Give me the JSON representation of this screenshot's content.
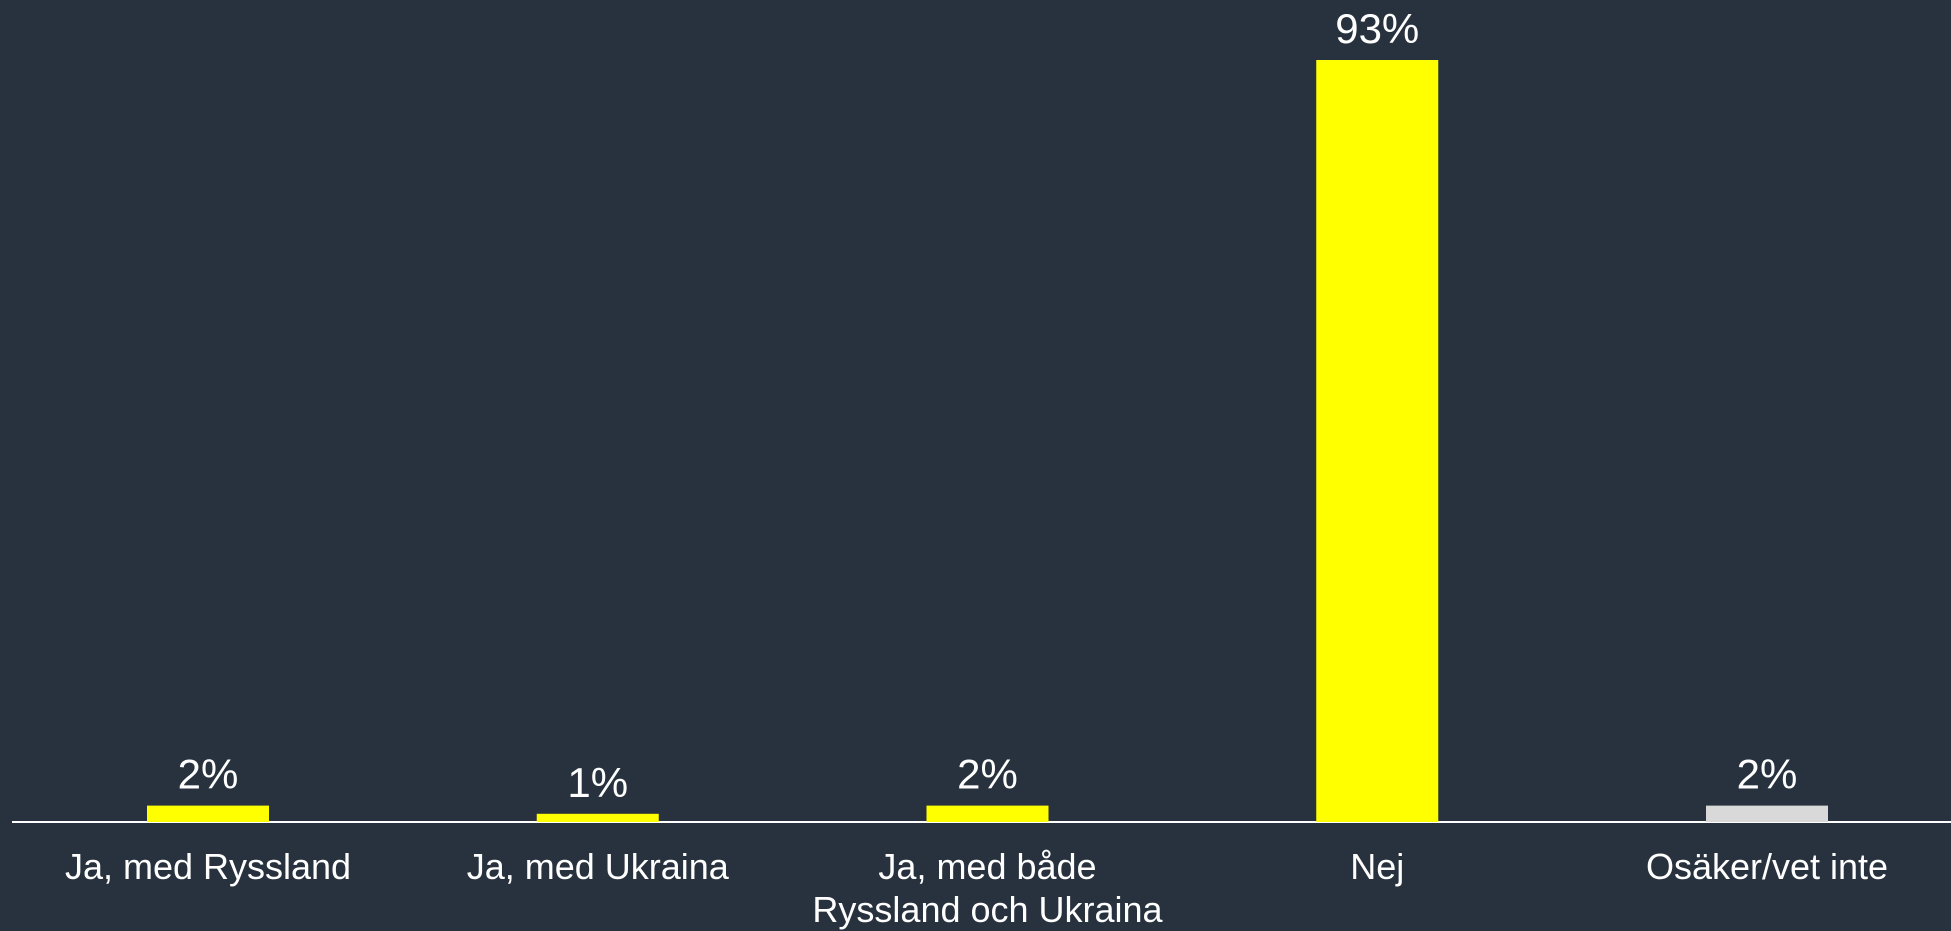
{
  "chart_data": {
    "type": "bar",
    "categories": [
      "Ja, med Ryssland",
      "Ja, med Ukraina",
      "Ja, med både\nRyssland och Ukraina",
      "Nej",
      "Osäker/vet inte"
    ],
    "values": [
      2,
      1,
      2,
      93,
      2
    ],
    "value_labels": [
      "2%",
      "1%",
      "2%",
      "93%",
      "2%"
    ],
    "colors": [
      "#ffff00",
      "#ffff00",
      "#ffff00",
      "#ffff00",
      "#d9d9d9"
    ]
  }
}
